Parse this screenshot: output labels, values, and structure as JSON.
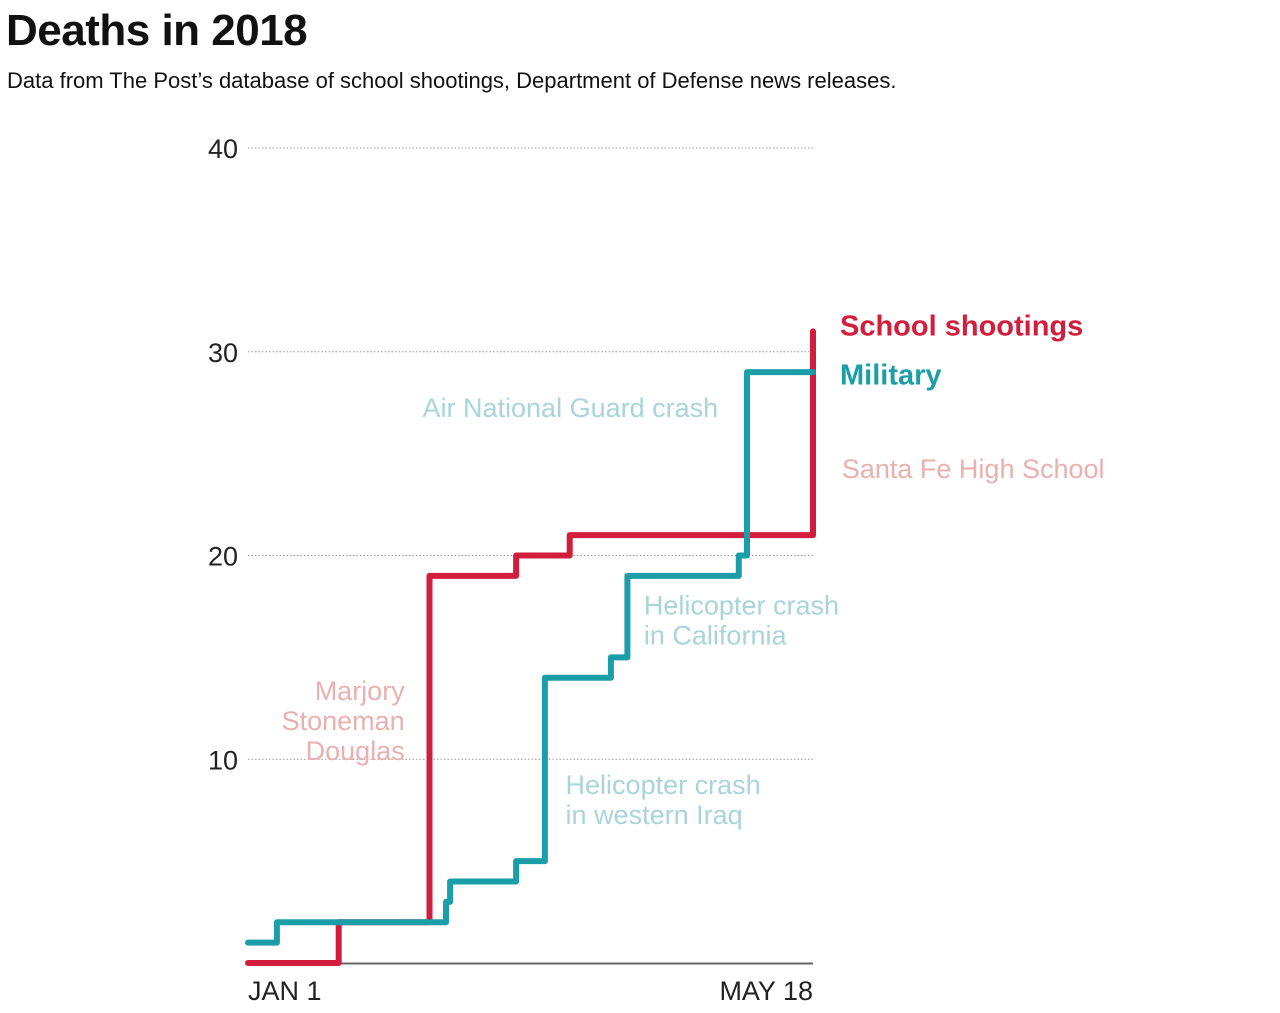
{
  "header": {
    "title": "Deaths in 2018",
    "subtitle": "Data from The Post’s database of school shootings, Department of Defense news releases."
  },
  "colors": {
    "school": "#d21e3c",
    "military": "#1b9ea7",
    "school_annot": "#eab0b0",
    "military_annot": "#a8d4da",
    "grid": "#999999",
    "axis": "#666666"
  },
  "chart_data": {
    "type": "line",
    "step": true,
    "title": "Deaths in 2018",
    "subtitle": "Data from The Post’s database of school shootings, Department of Defense news releases.",
    "xlabel": "",
    "ylabel": "",
    "x_unit": "day of year 2018 (0 = Jan 1)",
    "xlim": [
      0,
      137
    ],
    "ylim": [
      0,
      40
    ],
    "yticks": [
      10,
      20,
      30,
      40
    ],
    "ytick_labels": [
      "10",
      "20",
      "30",
      "40"
    ],
    "xtick_labels": [
      {
        "label": "JAN 1",
        "x": 0,
        "align": "start"
      },
      {
        "label": "MAY 18",
        "x": 137,
        "align": "end"
      }
    ],
    "grid": "horizontal-dotted",
    "legend_placement": "right",
    "series": [
      {
        "name": "School shootings",
        "color_key": "school",
        "points": [
          [
            0,
            0
          ],
          [
            22,
            0
          ],
          [
            22,
            2
          ],
          [
            44,
            2
          ],
          [
            44,
            19
          ],
          [
            65,
            19
          ],
          [
            65,
            20
          ],
          [
            78,
            20
          ],
          [
            78,
            21
          ],
          [
            137,
            21
          ],
          [
            137,
            31
          ]
        ]
      },
      {
        "name": "Military",
        "color_key": "military",
        "points": [
          [
            0,
            1
          ],
          [
            7,
            1
          ],
          [
            7,
            2
          ],
          [
            48,
            2
          ],
          [
            48,
            3
          ],
          [
            49,
            3
          ],
          [
            49,
            4
          ],
          [
            65,
            4
          ],
          [
            65,
            5
          ],
          [
            72,
            5
          ],
          [
            72,
            14
          ],
          [
            88,
            14
          ],
          [
            88,
            15
          ],
          [
            92,
            15
          ],
          [
            92,
            19
          ],
          [
            119,
            19
          ],
          [
            119,
            20
          ],
          [
            121,
            20
          ],
          [
            121,
            29
          ],
          [
            137,
            29
          ]
        ]
      }
    ],
    "legend": [
      {
        "label": "School shootings",
        "color_key": "school",
        "y": 31
      },
      {
        "label": "Military",
        "color_key": "military",
        "y": 28.6
      }
    ],
    "annotations": [
      {
        "lines": [
          "Marjory",
          "Stoneman",
          "Douglas"
        ],
        "color_key": "school_annot",
        "x": 38,
        "y": 12.9,
        "align": "end"
      },
      {
        "lines": [
          "Santa Fe High School"
        ],
        "color_key": "school_annot",
        "x": 144,
        "y": 23.8,
        "align": "start"
      },
      {
        "lines": [
          "Air National Guard crash"
        ],
        "color_key": "military_annot",
        "x": 114,
        "y": 26.8,
        "align": "end"
      },
      {
        "lines": [
          "Helicopter crash",
          "in California"
        ],
        "color_key": "military_annot",
        "x": 96,
        "y": 17.1,
        "align": "start"
      },
      {
        "lines": [
          "Helicopter crash",
          "in western Iraq"
        ],
        "color_key": "military_annot",
        "x": 77,
        "y": 8.3,
        "align": "start"
      }
    ]
  }
}
